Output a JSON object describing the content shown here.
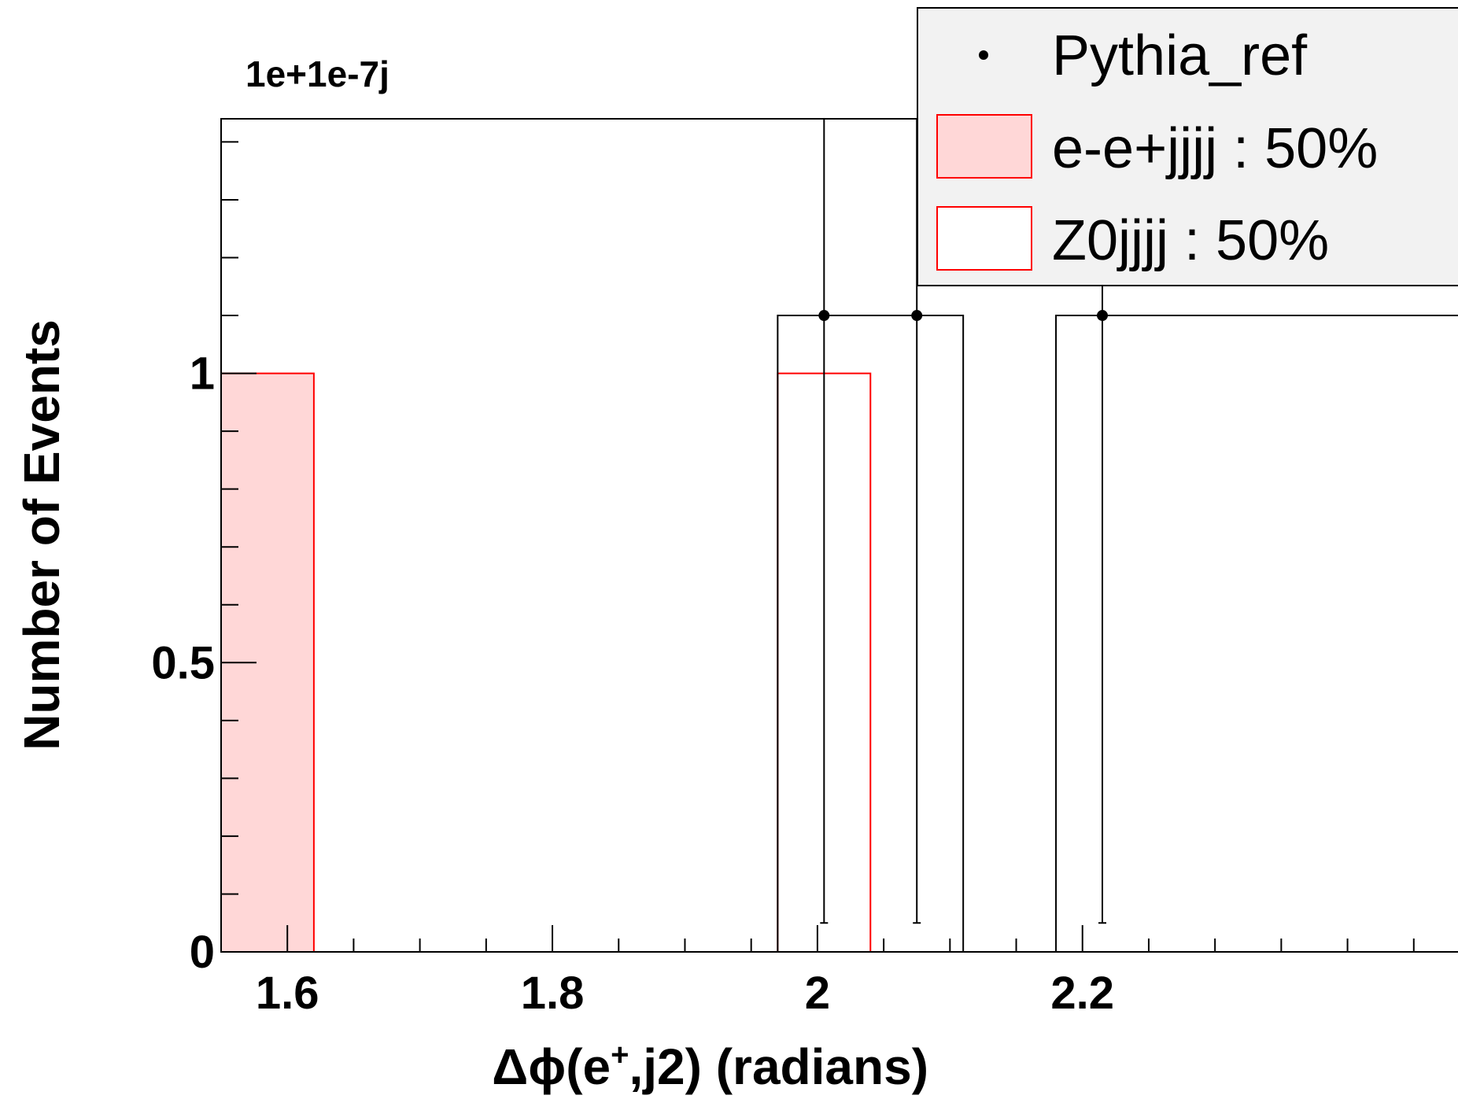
{
  "chart_data": {
    "type": "bar",
    "xlabel": "Δϕ(e",
    "xlabel_superscript": "+",
    "xlabel_suffix": ",j2) (radians)",
    "ylabel": "Number of Events",
    "axis_exponent_label": "1e+1e-7j",
    "xlim": [
      1.55,
      2.5
    ],
    "ylim": [
      0,
      1.44
    ],
    "x_ticks": [
      1.6,
      1.8,
      2,
      2.2
    ],
    "x_tick_labels": [
      "1.6",
      "1.8",
      "2",
      "2.2"
    ],
    "y_ticks": [
      0,
      0.5,
      1
    ],
    "y_tick_labels": [
      "0",
      "0.5",
      "1"
    ],
    "grid": false,
    "legend_position": "top-right",
    "bin_width": 0.07,
    "series": [
      {
        "name": "Pythia_ref",
        "style": "points-with-errors",
        "color": "#000000",
        "points": [
          {
            "x": 2.005,
            "y": 1.1,
            "err_low": 1.05
          },
          {
            "x": 2.075,
            "y": 1.1,
            "err_low": 1.05
          },
          {
            "x": 2.215,
            "y": 1.1,
            "err_low": 1.05
          }
        ],
        "step_hist": [
          {
            "x0": 1.97,
            "x1": 2.11,
            "y": 1.1
          },
          {
            "x0": 2.18,
            "x1": 2.5,
            "y": 1.1
          }
        ]
      },
      {
        "name": "e-e+jjjj : 50%",
        "style": "filled-hist",
        "color": "#ff0000",
        "fill": "#ffd7d7",
        "bins": [
          {
            "x0": 1.55,
            "x1": 1.62,
            "y": 1
          }
        ]
      },
      {
        "name": "Z0jjjj : 50%",
        "style": "outline-hist",
        "color": "#ff0000",
        "bins": [
          {
            "x0": 1.97,
            "x1": 2.04,
            "y": 1
          }
        ]
      }
    ]
  }
}
